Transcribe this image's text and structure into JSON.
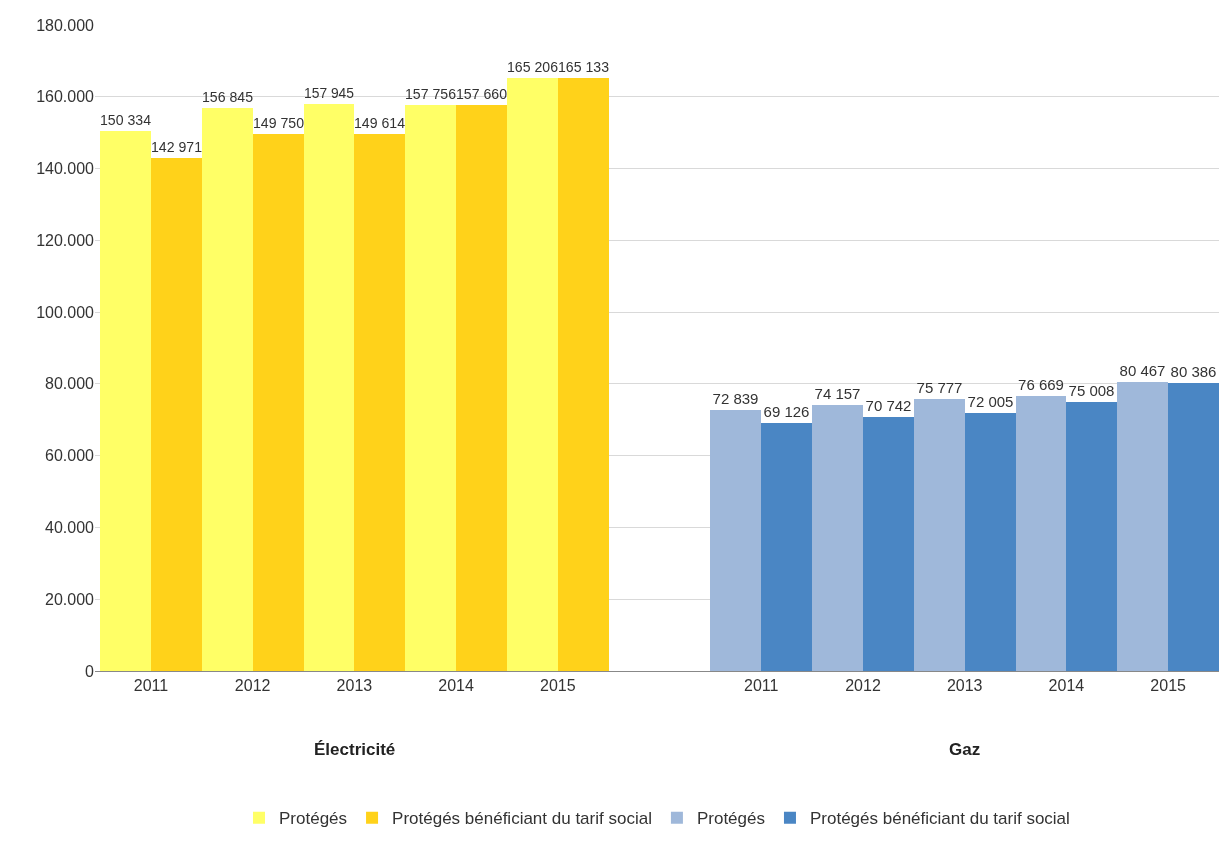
{
  "chart_data": {
    "type": "bar",
    "categories": [
      "2011",
      "2012",
      "2013",
      "2014",
      "2015",
      null,
      "2011",
      "2012",
      "2013",
      "2014",
      "2015"
    ],
    "series": [
      {
        "name": "Protégés",
        "color": "#ffff66",
        "values": [
          150334,
          156845,
          157945,
          157756,
          165206,
          null,
          null,
          null,
          null,
          null,
          null
        ],
        "value_labels": [
          "150 334",
          "156 845",
          "157 945",
          "157 756",
          "165 206",
          null,
          null,
          null,
          null,
          null,
          null
        ]
      },
      {
        "name": "Protégés bénéficiant du tarif social",
        "color": "#ffd21a",
        "values": [
          142971,
          149750,
          149614,
          157660,
          165133,
          null,
          null,
          null,
          null,
          null,
          null
        ],
        "value_labels": [
          "142 971",
          "149 750",
          "149 614",
          "157 660",
          "165 133",
          null,
          null,
          null,
          null,
          null,
          null
        ]
      },
      {
        "name": "Protégés",
        "color": "#9fb8da",
        "values": [
          null,
          null,
          null,
          null,
          null,
          null,
          72839,
          74157,
          75777,
          76669,
          80467
        ],
        "value_labels": [
          null,
          null,
          null,
          null,
          null,
          null,
          "72 839",
          "74 157",
          "75 777",
          "76 669",
          "80 467"
        ]
      },
      {
        "name": "Protégés bénéficiant du tarif social",
        "color": "#4a86c4",
        "values": [
          null,
          null,
          null,
          null,
          null,
          null,
          69126,
          70742,
          72005,
          75008,
          80386
        ],
        "value_labels": [
          null,
          null,
          null,
          null,
          null,
          null,
          "69 126",
          "70 742",
          "72 005",
          "75 008",
          "80 386"
        ]
      }
    ],
    "ylim": [
      0,
      180000
    ],
    "yticks": [
      {
        "value": 0,
        "label": "0"
      },
      {
        "value": 20000,
        "label": "20.000"
      },
      {
        "value": 40000,
        "label": "40.000"
      },
      {
        "value": 60000,
        "label": "60.000"
      },
      {
        "value": 80000,
        "label": "80.000"
      },
      {
        "value": 100000,
        "label": "100.000"
      },
      {
        "value": 120000,
        "label": "120.000"
      },
      {
        "value": 140000,
        "label": "140.000"
      },
      {
        "value": 160000,
        "label": "160.000"
      },
      {
        "value": 180000,
        "label": "180.000"
      }
    ],
    "grid": "y",
    "legend": "bottom",
    "annotations": [
      "Électricité",
      "Gaz"
    ]
  }
}
